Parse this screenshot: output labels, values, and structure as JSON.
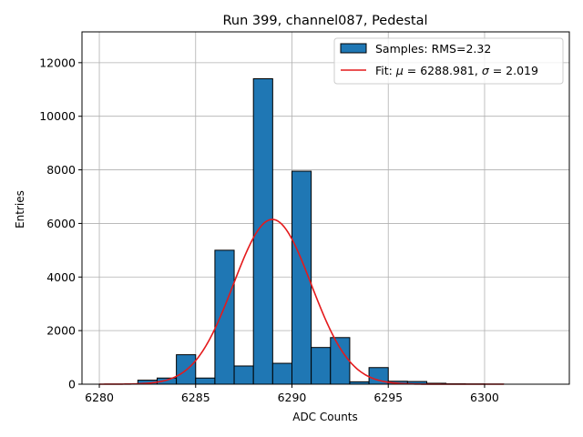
{
  "chart_data": {
    "type": "bar",
    "title": "Run 399, channel087, Pedestal",
    "xlabel": "ADC Counts",
    "ylabel": "Entries",
    "xlim": [
      6279.1,
      6304.4
    ],
    "ylim": [
      0,
      13150
    ],
    "xticks": [
      6280,
      6285,
      6290,
      6295,
      6300
    ],
    "yticks": [
      0,
      2000,
      4000,
      6000,
      8000,
      10000,
      12000
    ],
    "grid": true,
    "legend_position": "top-right",
    "bar_color": "#1f77b4",
    "fit_color": "#e41a1c",
    "histogram": {
      "name": "Samples: RMS=2.32",
      "bin_width": 1,
      "bin_starts": [
        6282,
        6283,
        6284,
        6285,
        6286,
        6287,
        6288,
        6289,
        6290,
        6291,
        6292,
        6293,
        6294,
        6295,
        6296,
        6297,
        6298,
        6299,
        6300
      ],
      "values": [
        150,
        230,
        1100,
        230,
        5000,
        680,
        11400,
        780,
        7950,
        1370,
        1740,
        90,
        620,
        110,
        100,
        35,
        15,
        10,
        5
      ]
    },
    "fit": {
      "name": "Fit: μ = 6288.981, σ = 2.019",
      "name_prefix": "Fit: ",
      "mu_symbol": "μ",
      "mu_text": " = 6288.981, ",
      "sigma_symbol": "σ",
      "sigma_text": " = 2.019",
      "mu": 6288.981,
      "sigma": 2.019,
      "amplitude": 6150,
      "x_range": [
        6280,
        6301
      ]
    }
  }
}
